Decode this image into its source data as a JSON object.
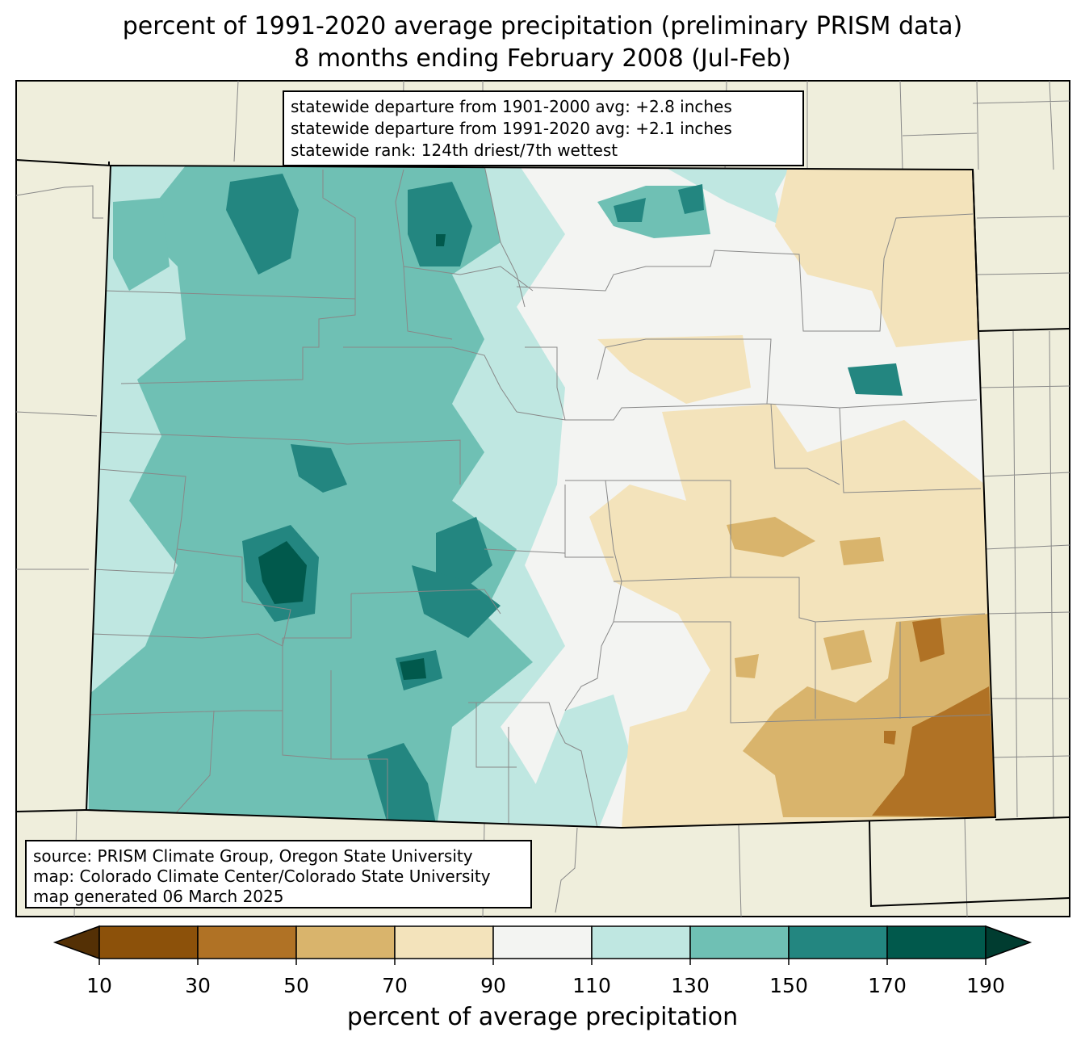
{
  "title": {
    "line1": "percent of 1991-2020 average precipitation (preliminary PRISM data)",
    "line2": "8 months ending February 2008 (Jul-Feb)"
  },
  "stats_box": {
    "line1": "statewide departure from 1901-2000 avg: +2.8 inches",
    "line2": "statewide departure from 1991-2020 avg: +2.1 inches",
    "line3": "statewide rank: 124th driest/7th wettest"
  },
  "source_box": {
    "line1": "source: PRISM Climate Group, Oregon State University",
    "line2": "map: Colorado Climate Center/Colorado State University",
    "line3": "map generated 06 March 2025"
  },
  "colorbar": {
    "label": "percent of average precipitation",
    "ticks": [
      "10",
      "30",
      "50",
      "70",
      "90",
      "110",
      "130",
      "150",
      "170",
      "190"
    ],
    "under_color": "#543005",
    "over_color": "#003c30",
    "bins": [
      {
        "range": "10-30",
        "color": "#8c510a"
      },
      {
        "range": "30-50",
        "color": "#b07225"
      },
      {
        "range": "50-70",
        "color": "#d9b46c"
      },
      {
        "range": "70-90",
        "color": "#f3e3bb"
      },
      {
        "range": "90-110",
        "color": "#f3f4f2"
      },
      {
        "range": "110-130",
        "color": "#bfe7e1"
      },
      {
        "range": "130-150",
        "color": "#6fc0b4"
      },
      {
        "range": "150-170",
        "color": "#238680"
      },
      {
        "range": "170-190",
        "color": "#01594c"
      }
    ]
  },
  "colors": {
    "land_background": "#efeedc",
    "county_lines": "#888888",
    "state_lines": "#000000"
  }
}
